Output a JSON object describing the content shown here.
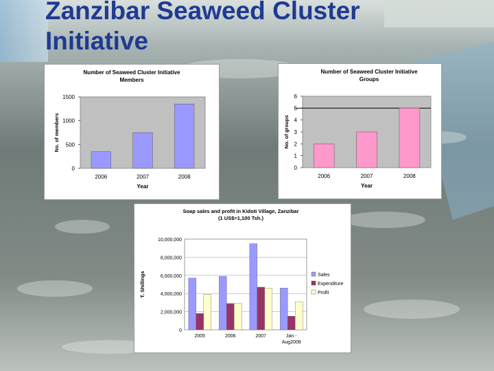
{
  "slide": {
    "title_line1": "Zanzibar Seaweed Cluster",
    "title_line2": "Initiative"
  },
  "colors": {
    "title": "#1f3a93",
    "members_bar": "#9999ff",
    "groups_bar": "#ff99cc",
    "sales": "#9999ff",
    "expenditure": "#993366",
    "profit": "#ffffcc"
  },
  "chart_data": [
    {
      "type": "bar",
      "title": "Number of Seaweed Cluster Initiative Members",
      "title_lines": [
        "Number of Seaweed Cluster Initiative",
        "Members"
      ],
      "xlabel": "Year",
      "ylabel": "No. of members",
      "categories": [
        "2006",
        "2007",
        "2008"
      ],
      "values": [
        350,
        750,
        1350
      ],
      "ylim": [
        0,
        1500
      ],
      "yticks": [
        "0",
        "500",
        "1000",
        "1500"
      ],
      "grid": false,
      "legend": "none"
    },
    {
      "type": "bar",
      "title": "Number of Seaweed Cluster Initiative Groups",
      "title_lines": [
        "Number of Seaweed Cluster Initiative",
        "Groups"
      ],
      "xlabel": "Year",
      "ylabel": "No. of groups",
      "categories": [
        "2006",
        "2007",
        "2008"
      ],
      "values": [
        2,
        3,
        5
      ],
      "ylim": [
        0,
        6
      ],
      "yticks": [
        "0",
        "1",
        "2",
        "3",
        "4",
        "5",
        "6"
      ],
      "reference_line": 5,
      "grid": false,
      "legend": "none"
    },
    {
      "type": "bar",
      "title": "Soap sales and profit in Kidoti Village, Zanzibar (1 US$=1,100 Tsh.)",
      "title_lines": [
        "Soap sales and profit in Kidoti Village, Zanzibar",
        "(1 US$=1,100 Tsh.)"
      ],
      "xlabel": "",
      "ylabel": "T. Shillings",
      "categories": [
        "2005",
        "2006",
        "2007",
        "Jan - Aug2008"
      ],
      "category_lines": [
        [
          "2005"
        ],
        [
          "2006"
        ],
        [
          "2007"
        ],
        [
          "Jan -",
          "Aug2008"
        ]
      ],
      "series": [
        {
          "name": "Sales",
          "values": [
            5700000,
            5900000,
            9500000,
            4600000
          ]
        },
        {
          "name": "Expenditure",
          "values": [
            1800000,
            2900000,
            4700000,
            1500000
          ]
        },
        {
          "name": "Profit",
          "values": [
            3900000,
            2900000,
            4600000,
            3100000
          ]
        }
      ],
      "ylim": [
        0,
        10000000
      ],
      "yticks": [
        "0",
        "2,000,000",
        "4,000,000",
        "6,000,000",
        "8,000,000",
        "10,000,000"
      ],
      "grid": true,
      "legend": "right"
    }
  ]
}
